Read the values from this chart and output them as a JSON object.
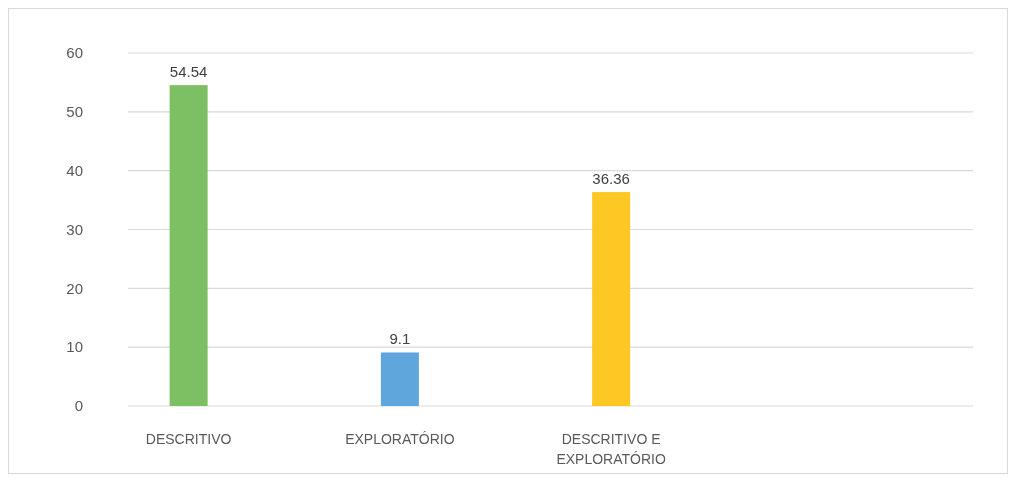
{
  "chart_data": {
    "type": "bar",
    "categories": [
      "DESCRITIVO",
      "EXPLORATÓRIO",
      "DESCRITIVO E EXPLORATÓRIO"
    ],
    "values": [
      54.54,
      9.1,
      36.36
    ],
    "colors": [
      "#7dbf63",
      "#5ea6dc",
      "#fdc724"
    ],
    "ylim": [
      0,
      60
    ],
    "yticks": [
      0,
      10,
      20,
      30,
      40,
      50,
      60
    ],
    "grid": "y",
    "data_labels": true
  }
}
